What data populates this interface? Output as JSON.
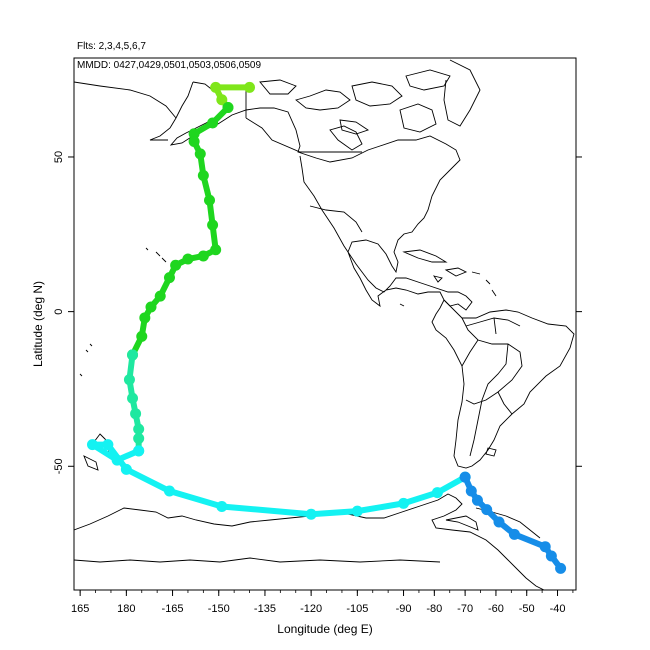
{
  "header": {
    "flights_line": "Flts: 2,3,4,5,6,7",
    "dates_line": "MMDD: 0427,0429,0501,0503,0506,0509"
  },
  "axes": {
    "xlabel": "Longitude (deg E)",
    "ylabel": "Latitude (deg N)",
    "x_ticks": [
      {
        "value": 165,
        "label": "165"
      },
      {
        "value": 180,
        "label": "180"
      },
      {
        "value": 195,
        "label": "-165"
      },
      {
        "value": 210,
        "label": "-150"
      },
      {
        "value": 225,
        "label": "-135"
      },
      {
        "value": 240,
        "label": "-120"
      },
      {
        "value": 255,
        "label": "-105"
      },
      {
        "value": 270,
        "label": "-90"
      },
      {
        "value": 280,
        "label": "-80"
      },
      {
        "value": 290,
        "label": "-70"
      },
      {
        "value": 300,
        "label": "-60"
      },
      {
        "value": 310,
        "label": "-50"
      },
      {
        "value": 320,
        "label": "-40"
      }
    ],
    "y_ticks": [
      {
        "value": 50,
        "label": "50"
      },
      {
        "value": 0,
        "label": "0"
      },
      {
        "value": -50,
        "label": "-50"
      }
    ],
    "xlim": [
      163,
      326
    ],
    "ylim": [
      -90,
      82
    ]
  },
  "chart_data": {
    "type": "scatter",
    "x_axis": "Longitude (deg E, 0-360)",
    "y_axis": "Latitude (deg N)",
    "series": [
      {
        "color": "#7fe61a",
        "points": [
          [
            220,
            72.5
          ],
          [
            209,
            72.5
          ],
          [
            211,
            68.5
          ],
          [
            213,
            66
          ]
        ]
      },
      {
        "color": "#1fd61f",
        "points": [
          [
            213,
            66
          ],
          [
            208,
            61
          ],
          [
            202,
            57.5
          ],
          [
            202,
            55
          ],
          [
            204,
            51
          ],
          [
            205,
            44
          ],
          [
            207,
            36
          ],
          [
            208,
            28
          ],
          [
            209,
            20
          ],
          [
            205,
            18
          ],
          [
            200,
            17
          ],
          [
            196,
            15
          ],
          [
            194,
            11
          ],
          [
            191,
            5
          ],
          [
            188,
            1.5
          ],
          [
            186,
            -2
          ],
          [
            185,
            -8
          ],
          [
            182,
            -14
          ]
        ]
      },
      {
        "color": "#1fe8a0",
        "points": [
          [
            182,
            -14
          ],
          [
            181,
            -22
          ],
          [
            182,
            -28
          ],
          [
            183,
            -33
          ],
          [
            184,
            -38
          ],
          [
            184,
            -41
          ],
          [
            184,
            -45
          ]
        ]
      },
      {
        "color": "#14f2f2",
        "points": [
          [
            184,
            -45
          ],
          [
            177,
            -48
          ],
          [
            169,
            -43
          ],
          [
            174,
            -43
          ],
          [
            180,
            -51
          ],
          [
            194,
            -58
          ],
          [
            211,
            -63
          ],
          [
            240,
            -65.5
          ],
          [
            255,
            -64.5
          ],
          [
            270,
            -62
          ],
          [
            281,
            -58.5
          ],
          [
            290,
            -53.5
          ]
        ]
      },
      {
        "color": "#168de8",
        "points": [
          [
            290,
            -53.5
          ],
          [
            292,
            -58
          ],
          [
            294,
            -61
          ],
          [
            297,
            -64
          ],
          [
            301,
            -68
          ],
          [
            306,
            -72
          ],
          [
            316,
            -76
          ],
          [
            318,
            -79
          ],
          [
            321,
            -83
          ]
        ]
      }
    ]
  }
}
